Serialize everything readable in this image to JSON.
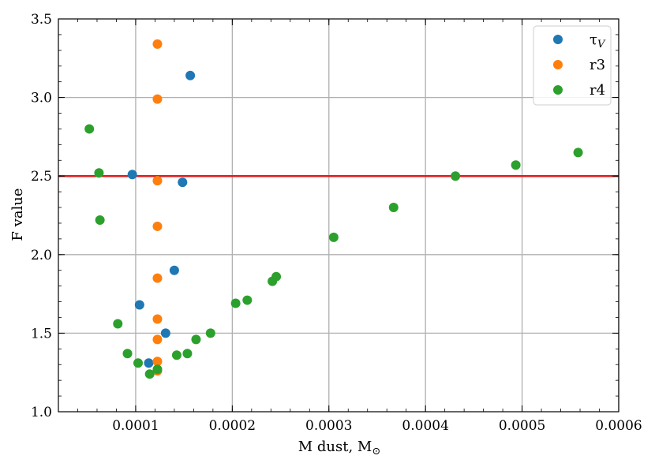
{
  "chart_data": {
    "type": "scatter",
    "title": "",
    "xlabel": "M dust, M",
    "xlabel_subscript": "⊙",
    "ylabel": "F value",
    "xlim": [
      2e-05,
      0.0006
    ],
    "ylim": [
      1.0,
      3.5
    ],
    "xticks": [
      0.0001,
      0.0002,
      0.0003,
      0.0004,
      0.0005,
      0.0006
    ],
    "xtick_labels": [
      "0.0001",
      "0.0002",
      "0.0003",
      "0.0004",
      "0.0005",
      "0.0006"
    ],
    "yticks": [
      1.0,
      1.5,
      2.0,
      2.5,
      3.0,
      3.5
    ],
    "ytick_labels": [
      "1.0",
      "1.5",
      "2.0",
      "2.5",
      "3.0",
      "3.5"
    ],
    "grid": true,
    "legend_position": "top-right",
    "reference_line": {
      "y": 2.5,
      "color": "#e31a1c"
    },
    "series": [
      {
        "name": "τ",
        "name_subscript": "V",
        "color": "#1f77b4",
        "points": [
          [
            9.65e-05,
            2.51
          ],
          [
            0.000104,
            1.68
          ],
          [
            0.0001135,
            1.31
          ],
          [
            0.000131,
            1.5
          ],
          [
            0.00014,
            1.9
          ],
          [
            0.0001485,
            2.46
          ],
          [
            0.0001565,
            3.14
          ]
        ]
      },
      {
        "name": "r3",
        "color": "#ff7f0e",
        "points": [
          [
            0.0001225,
            3.34
          ],
          [
            0.0001225,
            2.99
          ],
          [
            0.0001225,
            2.47
          ],
          [
            0.0001225,
            2.18
          ],
          [
            0.0001225,
            1.85
          ],
          [
            0.0001225,
            1.59
          ],
          [
            0.0001225,
            1.46
          ],
          [
            0.0001225,
            1.32
          ],
          [
            0.0001225,
            1.26
          ]
        ]
      },
      {
        "name": "r4",
        "color": "#2ca02c",
        "points": [
          [
            5.2e-05,
            2.8
          ],
          [
            6.2e-05,
            2.52
          ],
          [
            6.3e-05,
            2.22
          ],
          [
            8.15e-05,
            1.56
          ],
          [
            9.15e-05,
            1.37
          ],
          [
            0.0001025,
            1.31
          ],
          [
            0.0001145,
            1.24
          ],
          [
            0.0001225,
            1.27
          ],
          [
            0.0001425,
            1.36
          ],
          [
            0.0001535,
            1.37
          ],
          [
            0.0001625,
            1.46
          ],
          [
            0.0001775,
            1.5
          ],
          [
            0.0002035,
            1.69
          ],
          [
            0.0002155,
            1.71
          ],
          [
            0.0002415,
            1.83
          ],
          [
            0.0002455,
            1.86
          ],
          [
            0.000305,
            2.11
          ],
          [
            0.000367,
            2.3
          ],
          [
            0.000431,
            2.5
          ],
          [
            0.0004935,
            2.57
          ],
          [
            0.000558,
            2.65
          ]
        ]
      }
    ]
  }
}
